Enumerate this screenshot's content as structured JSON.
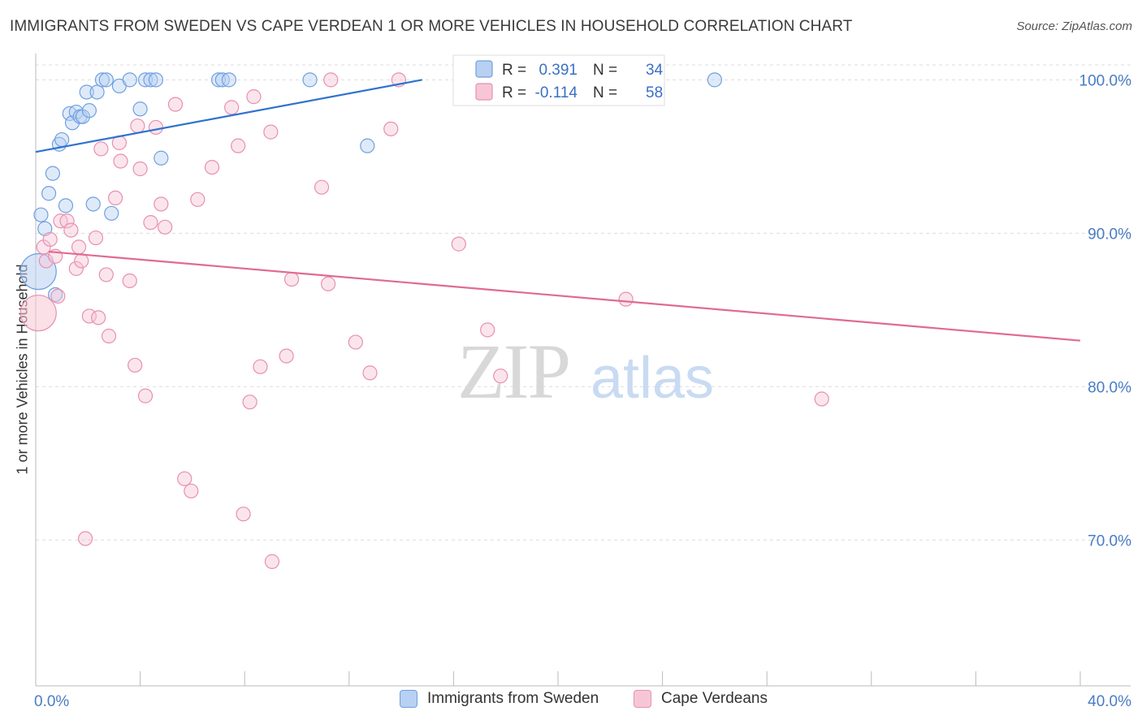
{
  "title": "IMMIGRANTS FROM SWEDEN VS CAPE VERDEAN 1 OR MORE VEHICLES IN HOUSEHOLD CORRELATION CHART",
  "source": "Source: ZipAtlas.com",
  "watermark": {
    "zip": "ZIP",
    "atlas": "atlas"
  },
  "chart_data": {
    "type": "scatter",
    "ylabel": "1 or more Vehicles in Household",
    "xlabel": "",
    "xlim": [
      0,
      40
    ],
    "ylim": [
      60.5,
      101.5
    ],
    "x_tick_labels": [
      {
        "value": 0,
        "label": "0.0%"
      },
      {
        "value": 40,
        "label": "40.0%"
      }
    ],
    "y_tick_labels": [
      {
        "value": 100,
        "label": "100.0%"
      },
      {
        "value": 90,
        "label": "90.0%"
      },
      {
        "value": 80,
        "label": "80.0%"
      },
      {
        "value": 70,
        "label": "70.0%"
      }
    ],
    "grid": true,
    "legend_position": "top-center",
    "legend": [
      {
        "r_label": "R =",
        "r_value": "0.391",
        "n_label": "N =",
        "n_value": "34"
      },
      {
        "r_label": "R =",
        "r_value": "-0.114",
        "n_label": "N =",
        "n_value": "58"
      }
    ],
    "series": [
      {
        "name": "Immigrants from Sweden",
        "color": "#6fa0e0",
        "fill": "#b8d0f2",
        "line_color": "#2f72d0",
        "trend": {
          "x": [
            0,
            14.8
          ],
          "y": [
            95.3,
            100.0
          ]
        },
        "points": [
          {
            "x": 0.2,
            "y": 91.2
          },
          {
            "x": 0.35,
            "y": 90.3
          },
          {
            "x": 0.5,
            "y": 92.6
          },
          {
            "x": 0.65,
            "y": 93.9
          },
          {
            "x": 0.9,
            "y": 95.8
          },
          {
            "x": 1.0,
            "y": 96.1
          },
          {
            "x": 1.15,
            "y": 91.8
          },
          {
            "x": 1.3,
            "y": 97.8
          },
          {
            "x": 1.4,
            "y": 97.2
          },
          {
            "x": 1.55,
            "y": 97.9
          },
          {
            "x": 1.7,
            "y": 97.6
          },
          {
            "x": 1.8,
            "y": 97.6
          },
          {
            "x": 1.95,
            "y": 99.2
          },
          {
            "x": 2.05,
            "y": 98.0
          },
          {
            "x": 2.2,
            "y": 91.9
          },
          {
            "x": 2.35,
            "y": 99.2
          },
          {
            "x": 2.55,
            "y": 100.0
          },
          {
            "x": 2.7,
            "y": 100.0
          },
          {
            "x": 2.9,
            "y": 91.3
          },
          {
            "x": 3.2,
            "y": 99.6
          },
          {
            "x": 3.6,
            "y": 100.0
          },
          {
            "x": 4.0,
            "y": 98.1
          },
          {
            "x": 4.2,
            "y": 100.0
          },
          {
            "x": 4.4,
            "y": 100.0
          },
          {
            "x": 4.6,
            "y": 100.0
          },
          {
            "x": 4.8,
            "y": 94.9
          },
          {
            "x": 7.0,
            "y": 100.0
          },
          {
            "x": 7.15,
            "y": 100.0
          },
          {
            "x": 7.4,
            "y": 100.0
          },
          {
            "x": 10.5,
            "y": 100.0
          },
          {
            "x": 12.7,
            "y": 95.7
          },
          {
            "x": 26.0,
            "y": 100.0
          },
          {
            "x": 0.75,
            "y": 86.0
          },
          {
            "x": 0.1,
            "y": 87.5,
            "big": true
          }
        ]
      },
      {
        "name": "Cape Verdeans",
        "color": "#e890b0",
        "fill": "#f7c6d6",
        "line_color": "#e06a94",
        "trend": {
          "x": [
            0.5,
            40
          ],
          "y": [
            88.8,
            83.0
          ]
        },
        "points": [
          {
            "x": 0.3,
            "y": 89.1
          },
          {
            "x": 0.4,
            "y": 88.2
          },
          {
            "x": 0.55,
            "y": 89.6
          },
          {
            "x": 0.75,
            "y": 88.5
          },
          {
            "x": 0.85,
            "y": 85.9
          },
          {
            "x": 0.95,
            "y": 90.8
          },
          {
            "x": 1.2,
            "y": 90.8
          },
          {
            "x": 1.35,
            "y": 90.2
          },
          {
            "x": 1.55,
            "y": 87.7
          },
          {
            "x": 1.65,
            "y": 89.1
          },
          {
            "x": 1.75,
            "y": 88.2
          },
          {
            "x": 1.9,
            "y": 70.1
          },
          {
            "x": 2.05,
            "y": 84.6
          },
          {
            "x": 2.3,
            "y": 89.7
          },
          {
            "x": 2.4,
            "y": 84.5
          },
          {
            "x": 2.5,
            "y": 95.5
          },
          {
            "x": 2.7,
            "y": 87.3
          },
          {
            "x": 2.8,
            "y": 83.3
          },
          {
            "x": 3.05,
            "y": 92.3
          },
          {
            "x": 3.2,
            "y": 95.9
          },
          {
            "x": 3.25,
            "y": 94.7
          },
          {
            "x": 3.6,
            "y": 86.9
          },
          {
            "x": 3.8,
            "y": 81.4
          },
          {
            "x": 3.9,
            "y": 97.0
          },
          {
            "x": 4.0,
            "y": 94.2
          },
          {
            "x": 4.2,
            "y": 79.4
          },
          {
            "x": 4.4,
            "y": 90.7
          },
          {
            "x": 4.6,
            "y": 96.9
          },
          {
            "x": 4.8,
            "y": 91.9
          },
          {
            "x": 4.95,
            "y": 90.4
          },
          {
            "x": 5.35,
            "y": 98.4
          },
          {
            "x": 5.7,
            "y": 74.0
          },
          {
            "x": 5.95,
            "y": 73.2
          },
          {
            "x": 6.2,
            "y": 92.2
          },
          {
            "x": 6.75,
            "y": 94.3
          },
          {
            "x": 7.5,
            "y": 98.2
          },
          {
            "x": 7.75,
            "y": 95.7
          },
          {
            "x": 7.95,
            "y": 71.7
          },
          {
            "x": 8.2,
            "y": 79.0
          },
          {
            "x": 8.35,
            "y": 98.9
          },
          {
            "x": 8.6,
            "y": 81.3
          },
          {
            "x": 9.0,
            "y": 96.6
          },
          {
            "x": 9.05,
            "y": 68.6
          },
          {
            "x": 9.6,
            "y": 82.0
          },
          {
            "x": 9.8,
            "y": 87.0
          },
          {
            "x": 10.95,
            "y": 93.0
          },
          {
            "x": 11.2,
            "y": 86.7
          },
          {
            "x": 11.3,
            "y": 100.0
          },
          {
            "x": 12.25,
            "y": 82.9
          },
          {
            "x": 12.8,
            "y": 80.9
          },
          {
            "x": 13.6,
            "y": 96.8
          },
          {
            "x": 13.9,
            "y": 100.0
          },
          {
            "x": 16.2,
            "y": 89.3
          },
          {
            "x": 17.3,
            "y": 83.7
          },
          {
            "x": 17.8,
            "y": 80.7
          },
          {
            "x": 22.6,
            "y": 85.7
          },
          {
            "x": 30.1,
            "y": 79.2
          },
          {
            "x": 0.1,
            "y": 84.8,
            "big": true
          }
        ]
      }
    ]
  }
}
